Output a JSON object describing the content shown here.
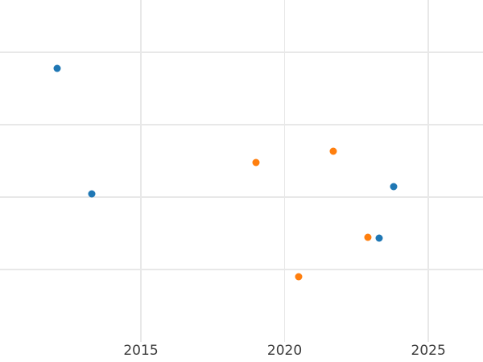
{
  "figure": {
    "background_color": "#ffffff"
  },
  "chart_data": {
    "type": "scatter",
    "title": "",
    "xlabel": "",
    "ylabel": "",
    "grid": true,
    "legend": "none",
    "x_tick_labels": [
      "2015",
      "2020",
      "2025"
    ],
    "x_tick_values": [
      2015,
      2020,
      2025
    ],
    "y_tick_values": [
      1,
      2,
      3,
      4
    ],
    "y_tick_labels_visible": false,
    "y_axis_note": "y axis has no visible labels; y values estimated in gridline units counted up from the plot bottom edge",
    "xlim": [
      2010.1,
      2026.9
    ],
    "ylim": [
      0,
      4.72
    ],
    "series": [
      {
        "name": "blue-series",
        "color": "#1f77b4",
        "points": [
          {
            "x": 2012.1,
            "y": 3.78
          },
          {
            "x": 2013.3,
            "y": 2.04
          },
          {
            "x": 2023.8,
            "y": 2.14
          },
          {
            "x": 2023.3,
            "y": 1.43
          }
        ]
      },
      {
        "name": "orange-series",
        "color": "#ff7f0e",
        "points": [
          {
            "x": 2019.0,
            "y": 2.48
          },
          {
            "x": 2021.7,
            "y": 2.63
          },
          {
            "x": 2022.9,
            "y": 1.44
          },
          {
            "x": 2020.5,
            "y": 0.9
          }
        ]
      }
    ],
    "style": {
      "gridline_color": "#e8e8e8",
      "tick_label_color": "#3b3b3b",
      "marker_diameter_px": 9
    }
  }
}
